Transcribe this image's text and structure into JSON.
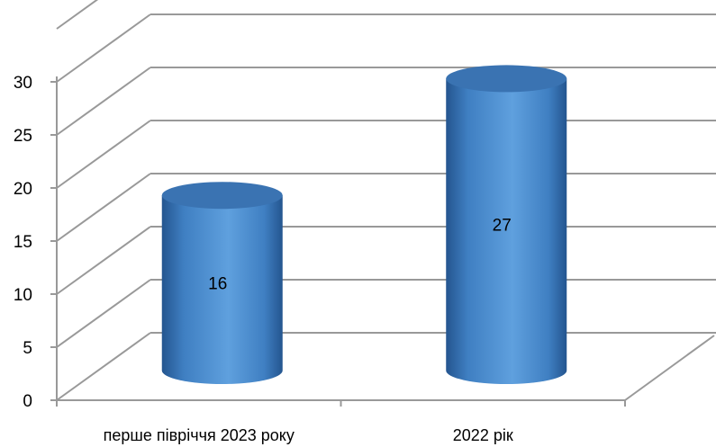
{
  "chart_data": {
    "type": "bar",
    "shape": "cylinder",
    "view": "3d",
    "categories": [
      "перше півріччя 2023 року",
      "2022 рік"
    ],
    "values": [
      16,
      27
    ],
    "data_labels": [
      "16",
      "27"
    ],
    "yticks": [
      "0",
      "5",
      "10",
      "15",
      "20",
      "25",
      "30"
    ],
    "ylim": [
      0,
      30
    ],
    "ystep": 5,
    "grid": true,
    "legend": "none",
    "colors": {
      "bar_light": "#5fa0de",
      "bar_mid": "#3f7fc2",
      "bar_dark": "#24558f",
      "bar_top": "#3a73b2",
      "grid": "#999999"
    }
  }
}
